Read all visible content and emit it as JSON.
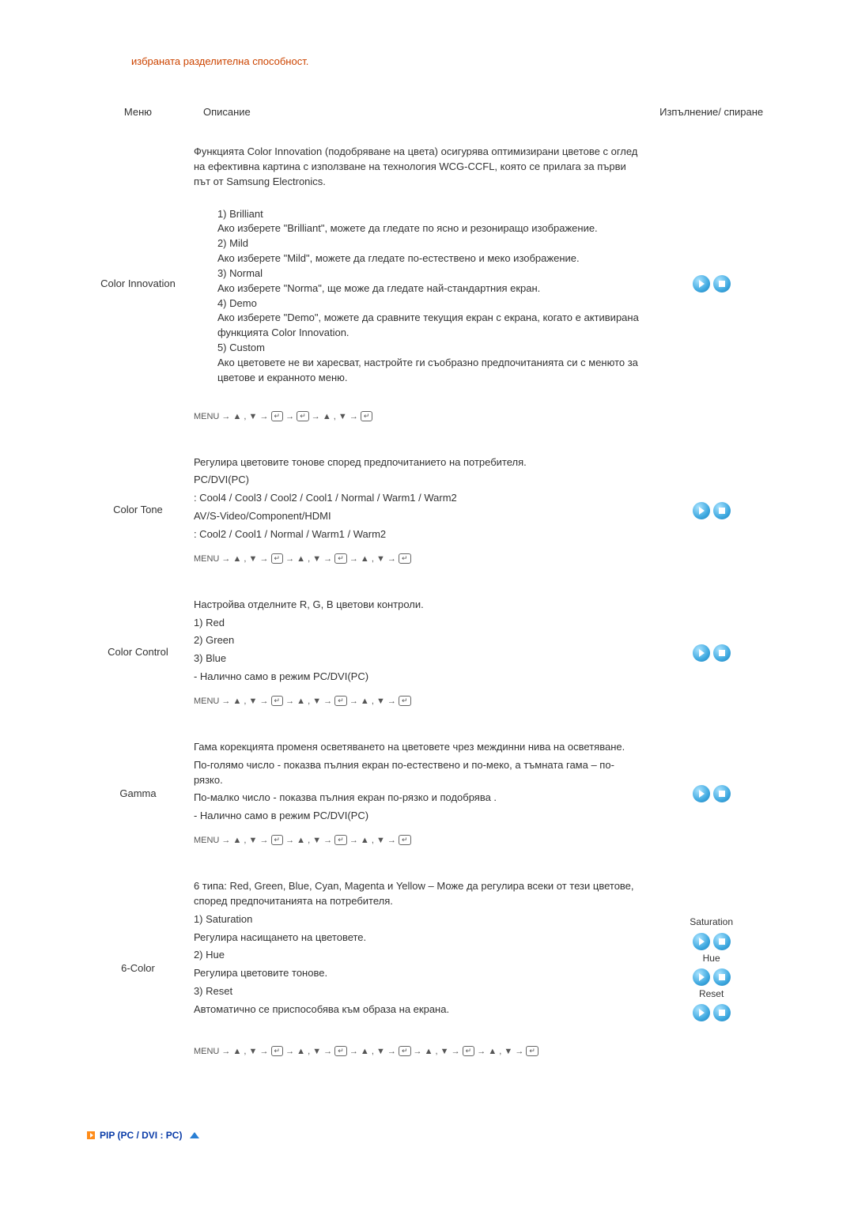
{
  "intro_text": "избраната разделителна способност.",
  "headers": {
    "menu": "Меню",
    "description": "Описание",
    "action": "Изпълнение/ спиране"
  },
  "rows": {
    "color_innovation": {
      "label": "Color Innovation",
      "intro": "Функцията Color Innovation (подобряване на цвета) осигурява оптимизирани цветове с оглед на ефективна картина с използване на технология WCG-CCFL, която се прилага за първи път от Samsung Electronics.",
      "opt1_t": "1) Brilliant",
      "opt1_d": "Ако изберете  \"Brilliant\", можете да гледате по ясно и резониращо изображение.",
      "opt2_t": "2) Mild",
      "opt2_d": "Ако изберете \"Mild\", можете да гледате по-естествено и меко изображение.",
      "opt3_t": "3) Normal",
      "opt3_d": "Ако изберете \"Norma\", ще може да гледате най-стандартния екран.",
      "opt4_t": "4) Demo",
      "opt4_d": "Ако изберете \"Demo\", можете да сравните текущия екран с екрана, когато е активирана функцията Color Innovation.",
      "opt5_t": "5) Custom",
      "opt5_d": "Ако цветовете не ви харесват, настройте ги съобразно предпочитанията си с менюто за цветове и екранното меню."
    },
    "color_tone": {
      "label": "Color Tone",
      "l1": "Регулира цветовите тонове според предпочитанието на потребителя.",
      "l2": "PC/DVI(PC)",
      "l3": ": Cool4 / Cool3 / Cool2 / Cool1 / Normal / Warm1 / Warm2",
      "l4": "AV/S-Video/Component/HDMI",
      "l5": ": Cool2 / Cool1 / Normal / Warm1 / Warm2"
    },
    "color_control": {
      "label": "Color Control",
      "l1": "Настройва отделните R, G, B цветови контроли.",
      "l2": "1) Red",
      "l3": "2) Green",
      "l4": "3) Blue",
      "l5": "- Налично само в режим PC/DVI(PC)"
    },
    "gamma": {
      "label": "Gamma",
      "l1": "Гама корекцията променя осветяването на цветовете чрез междинни нива на осветяване.",
      "l2": "По-голямо число - показва пълния екран по-естествено и по-меко, а тъмната гама – по-рязко.",
      "l3": "По-малко число - показва пълния екран по-рязко и подобрява .",
      "l4": "- Налично само в режим PC/DVI(PC)"
    },
    "six_color": {
      "label": "6-Color",
      "l1": "6 типа: Red, Green, Blue, Cyan, Magenta и Yellow – Може да регулира всеки от тези цветове, според предпочитанията на потребителя.",
      "s1t": "1) Saturation",
      "s1d": "Регулира насищането на цветовете.",
      "s2t": "2) Hue",
      "s2d": "Регулира цветовите тонове.",
      "s3t": "3) Reset",
      "s3d": "Автоматично се приспособява към образа на екрана.",
      "act_sat": "Saturation",
      "act_hue": "Hue",
      "act_reset": "Reset"
    }
  },
  "menu_word": "MENU",
  "footer": "PIP (PC / DVI : PC)",
  "colors": {
    "intro": "#cc4400",
    "footer_text": "#0a3ca8",
    "icon_blue": "#3fa9e0"
  }
}
